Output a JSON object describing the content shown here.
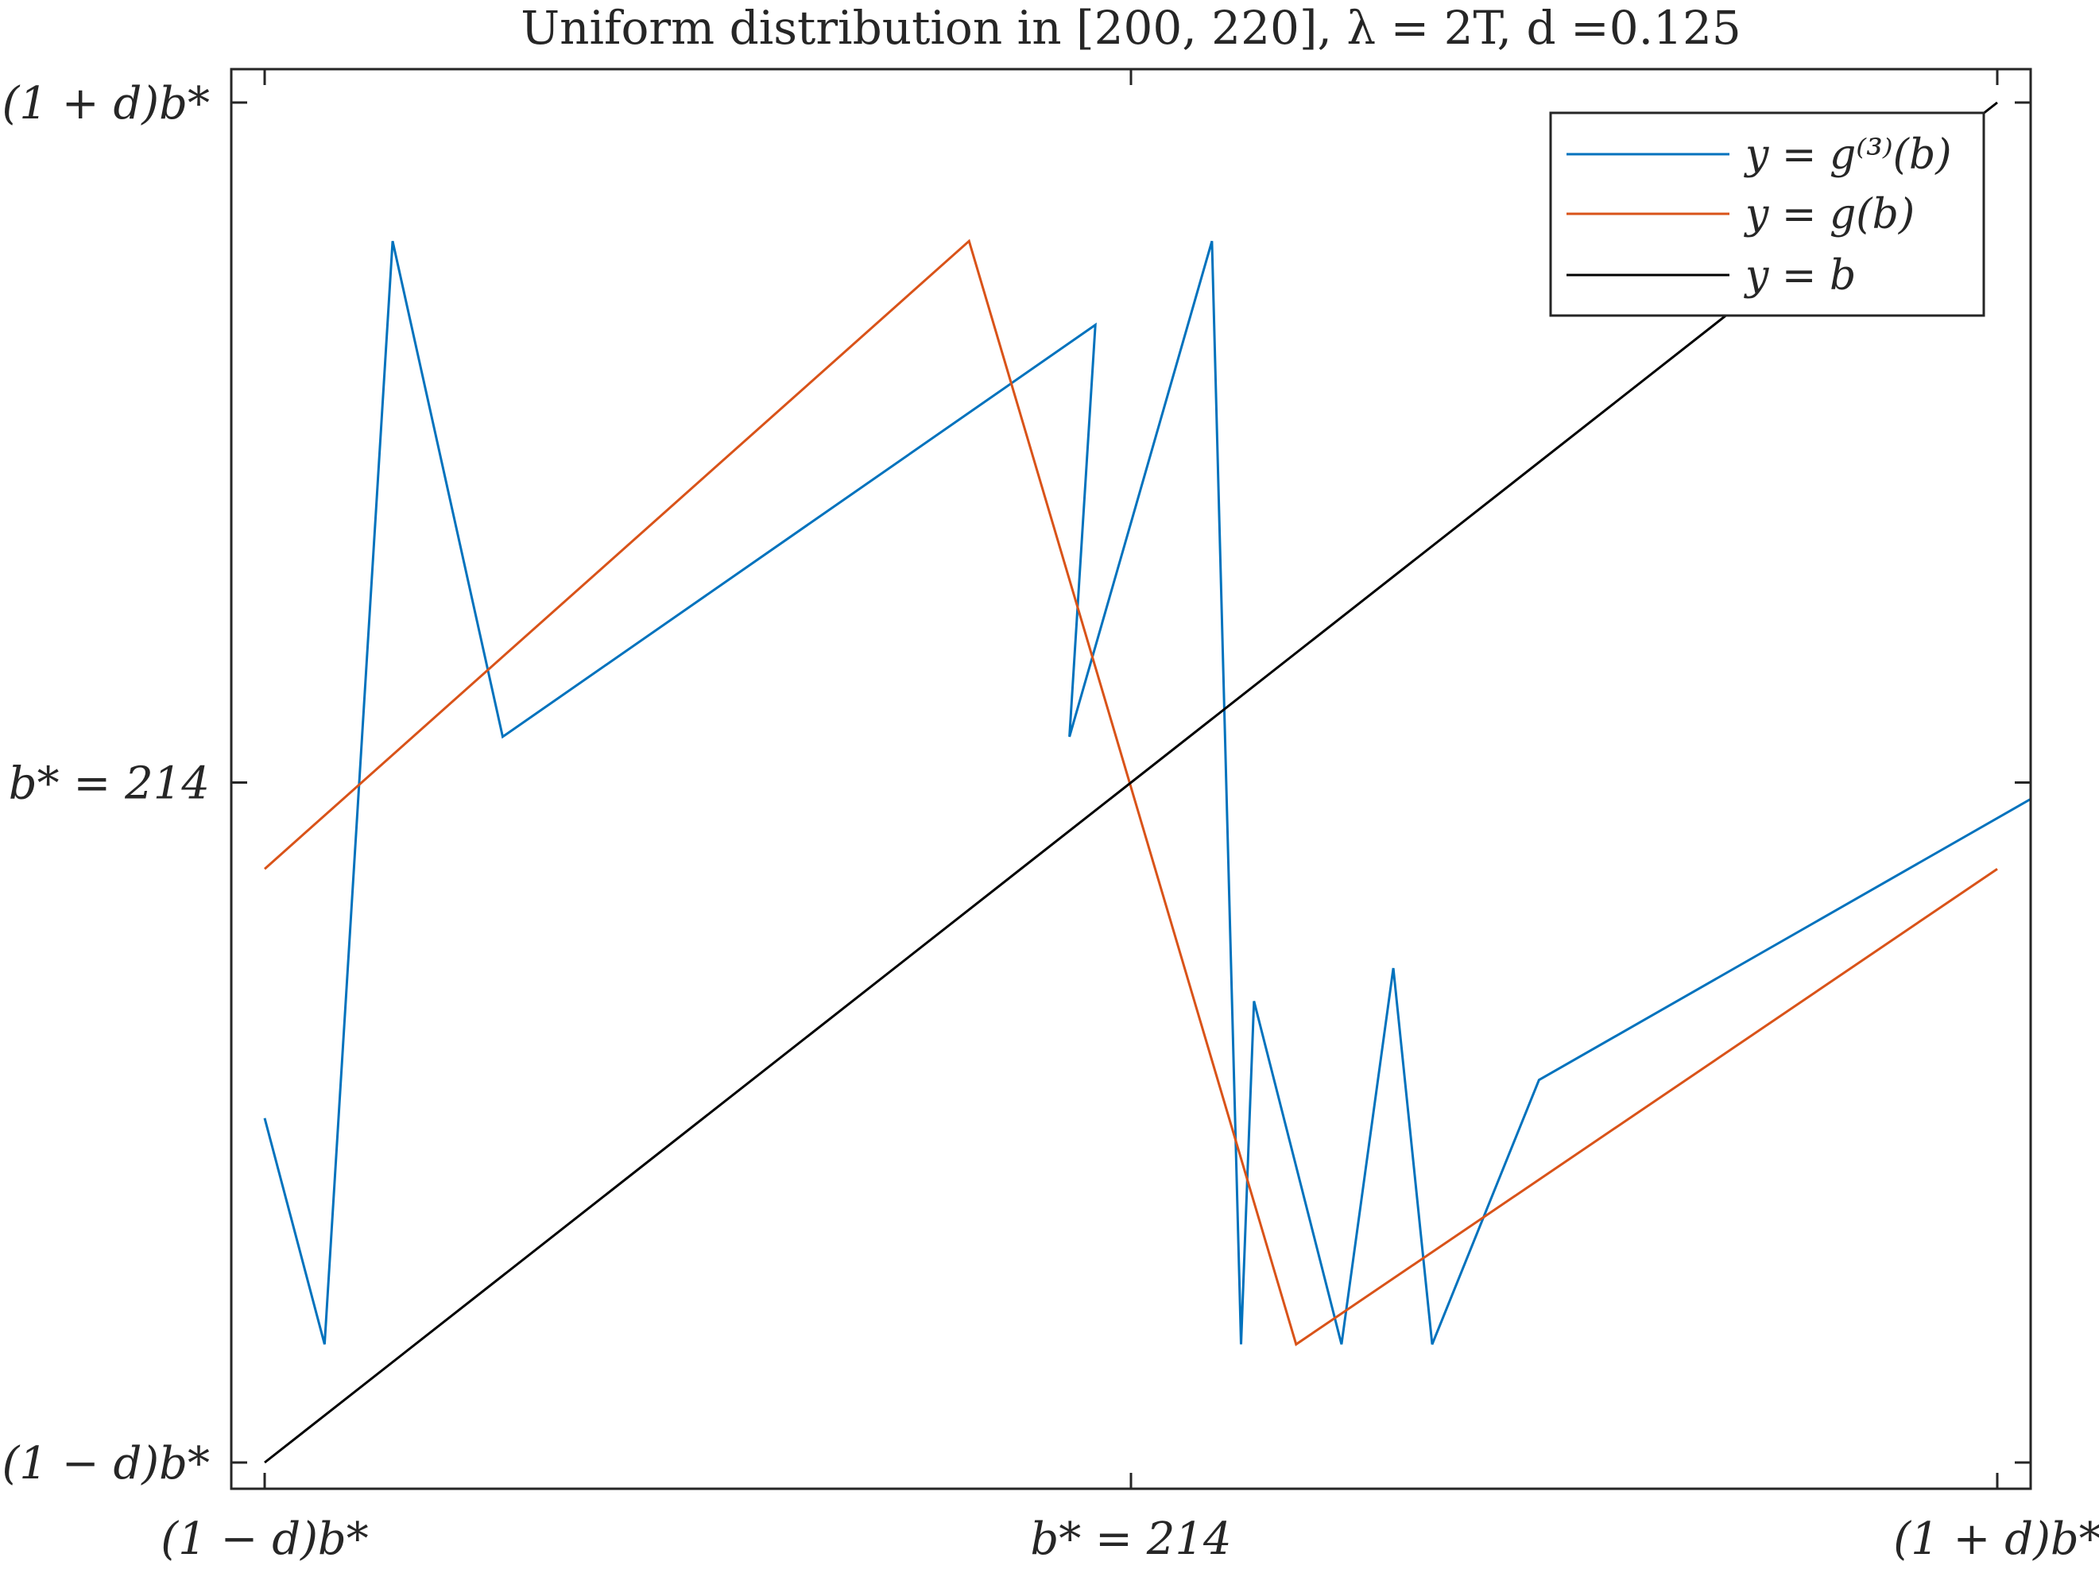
{
  "chart_data": {
    "type": "line",
    "title": "Uniform distribution in [200, 220], λ = 2T, d =0.125",
    "xlabel": "",
    "ylabel": "",
    "xlim": [
      187.25,
      240.75
    ],
    "ylim": [
      187.25,
      240.75
    ],
    "grid": false,
    "legend_position": "top-right",
    "x_ticks": [
      {
        "value": 187.25,
        "label": "(1 − d)b*"
      },
      {
        "value": 214,
        "label": "b* = 214"
      },
      {
        "value": 240.75,
        "label": "(1 + d)b*"
      }
    ],
    "y_ticks": [
      {
        "value": 187.25,
        "label": "(1 − d)b*"
      },
      {
        "value": 214,
        "label": "b* = 214"
      },
      {
        "value": 240.75,
        "label": "(1 + d)b*"
      }
    ],
    "series": [
      {
        "name": "y = g⁽³⁾(b)",
        "color": "#0072BD",
        "x": [
          187.25,
          189.1,
          191.2,
          194.6,
          212.9,
          212.1,
          216.5,
          217.4,
          217.8,
          220.5,
          222.1,
          223.3,
          226.6,
          245.7,
          247.0
        ],
        "y": [
          200.8,
          191.9,
          235.3,
          215.8,
          232.0,
          215.8,
          235.3,
          191.9,
          205.4,
          191.9,
          206.7,
          191.9,
          202.3,
          216.2,
          208.1
        ]
      },
      {
        "name": "y = g(b)",
        "color": "#D95319",
        "x": [
          187.25,
          209.0,
          219.1,
          240.75
        ],
        "y": [
          210.6,
          235.3,
          191.9,
          210.6
        ]
      },
      {
        "name": "y = b",
        "color": "#000000",
        "x": [
          187.25,
          240.75
        ],
        "y": [
          187.25,
          240.75
        ]
      }
    ]
  }
}
